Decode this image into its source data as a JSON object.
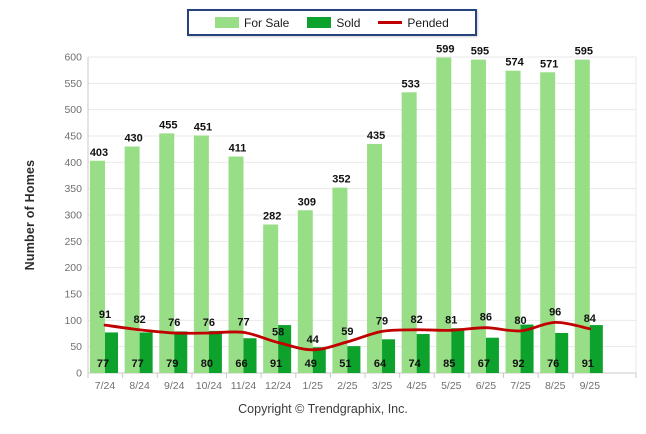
{
  "legend": {
    "items": [
      {
        "label": "For Sale",
        "swatch": "bar",
        "color": "#98DE87"
      },
      {
        "label": "Sold",
        "swatch": "bar",
        "color": "#0CA22B"
      },
      {
        "label": "Pended",
        "swatch": "line",
        "color": "#C00000"
      }
    ]
  },
  "y_axis": {
    "title": "Number of Homes"
  },
  "footer": {
    "text": "Copyright © Trendgraphix, Inc."
  },
  "colors": {
    "for_sale": "#98DE87",
    "sold": "#0CA22B",
    "pended": "#C00000",
    "grid": "#E9E9E9",
    "axis": "#C8C8C8",
    "tick_text": "#6F6F6F",
    "value_text": "#111111"
  },
  "chart_data": {
    "type": "bar",
    "title": "",
    "categories": [
      "7/24",
      "8/24",
      "9/24",
      "10/24",
      "11/24",
      "12/24",
      "1/25",
      "2/25",
      "3/25",
      "4/25",
      "5/25",
      "6/25",
      "7/25",
      "8/25",
      "9/25"
    ],
    "series": [
      {
        "name": "For Sale",
        "type": "bar",
        "color": "#98DE87",
        "values": [
          403,
          430,
          455,
          451,
          411,
          282,
          309,
          352,
          435,
          533,
          599,
          595,
          574,
          571,
          595
        ]
      },
      {
        "name": "Sold",
        "type": "bar",
        "color": "#0CA22B",
        "values": [
          77,
          77,
          79,
          80,
          66,
          91,
          49,
          51,
          64,
          74,
          85,
          67,
          92,
          76,
          91
        ]
      },
      {
        "name": "Pended",
        "type": "line",
        "color": "#C00000",
        "values": [
          91,
          82,
          76,
          76,
          77,
          58,
          44,
          59,
          79,
          82,
          81,
          86,
          80,
          96,
          84
        ]
      }
    ],
    "xlabel": "",
    "ylabel": "Number of Homes",
    "ylim": [
      0,
      600
    ],
    "ytick_step": 50,
    "grid": true,
    "legend_position": "top-center",
    "value_labels": true
  }
}
